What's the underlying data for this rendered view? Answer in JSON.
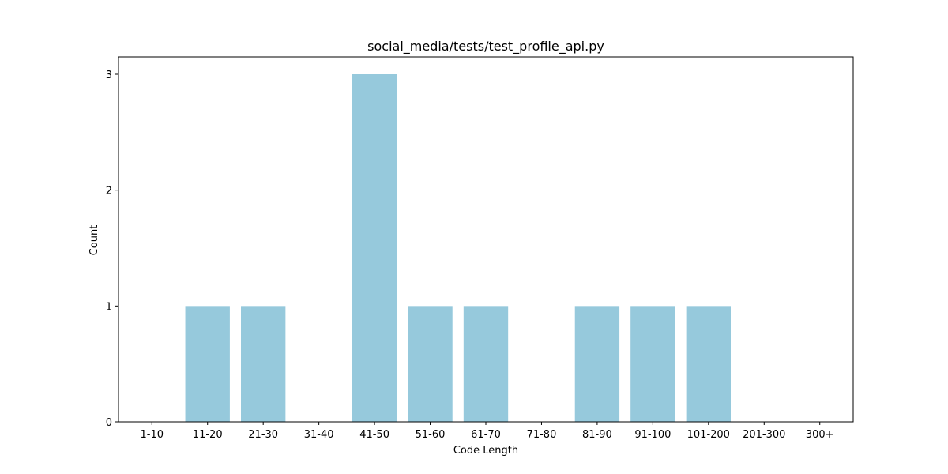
{
  "chart_data": {
    "type": "bar",
    "title": "social_media/tests/test_profile_api.py",
    "xlabel": "Code Length",
    "ylabel": "Count",
    "categories": [
      "1-10",
      "11-20",
      "21-30",
      "31-40",
      "41-50",
      "51-60",
      "61-70",
      "71-80",
      "81-90",
      "91-100",
      "101-200",
      "201-300",
      "300+"
    ],
    "values": [
      0,
      1,
      1,
      0,
      3,
      1,
      1,
      0,
      1,
      1,
      1,
      0,
      0
    ],
    "ylim": [
      0,
      3.15
    ],
    "yticks": [
      "0",
      "1",
      "2",
      "3"
    ],
    "grid": false,
    "legend": "none",
    "bar_color": "#96c9dc"
  }
}
